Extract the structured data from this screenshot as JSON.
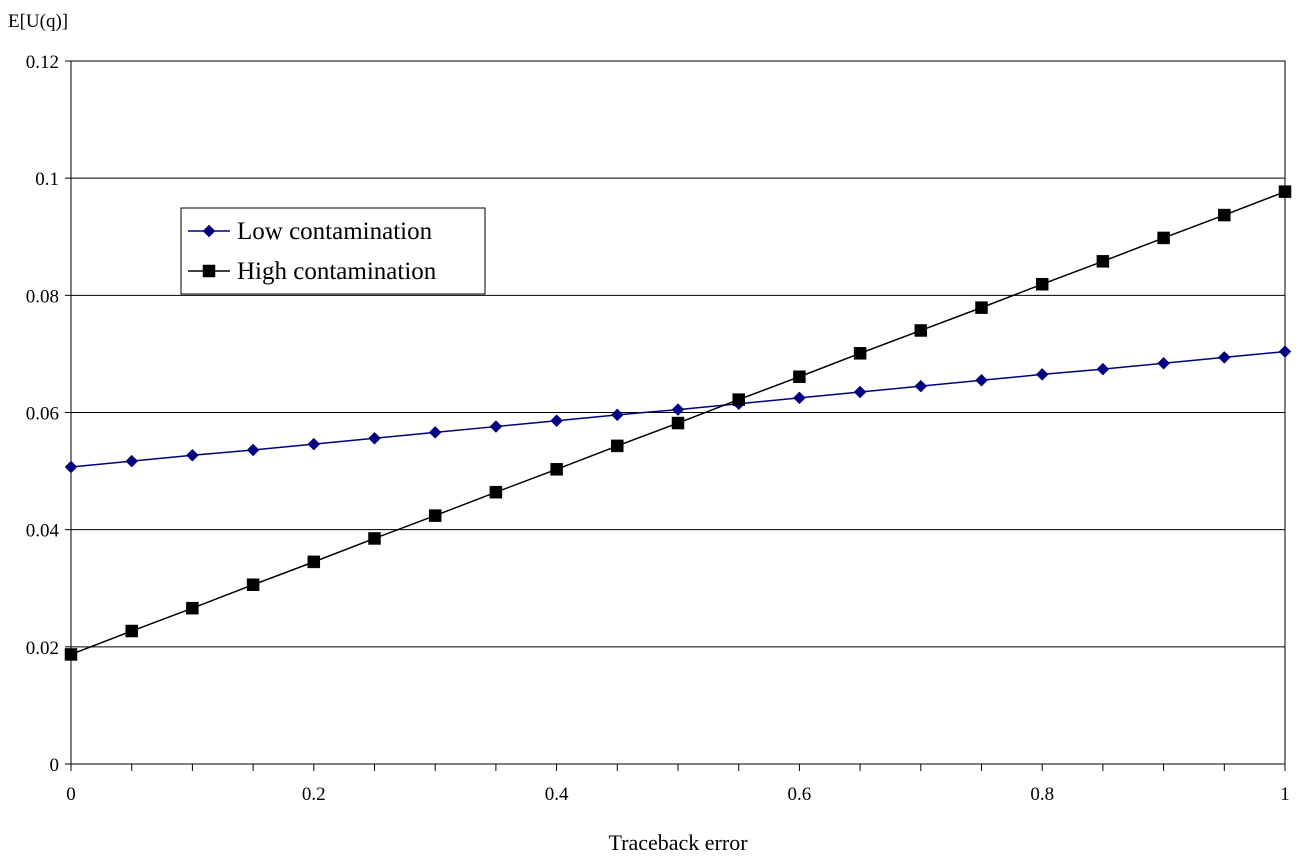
{
  "chart_data": {
    "type": "line",
    "title": "",
    "xlabel": "Traceback error",
    "ylabel": "E[U(q)]",
    "xlim": [
      0,
      1
    ],
    "ylim": [
      0,
      0.12
    ],
    "x_ticks": [
      0,
      0.2,
      0.4,
      0.6,
      0.8,
      1
    ],
    "x_tick_labels": [
      "0",
      "0.2",
      "0.4",
      "0.6",
      "0.8",
      "1"
    ],
    "x_minor_step": 0.05,
    "y_ticks": [
      0,
      0.02,
      0.04,
      0.06,
      0.08,
      0.1,
      0.12
    ],
    "y_tick_labels": [
      "0",
      "0.02",
      "0.04",
      "0.06",
      "0.08",
      "0.1",
      "0.12"
    ],
    "grid": "horizontal",
    "legend_position": "upper-left",
    "x": [
      0,
      0.05,
      0.1,
      0.15,
      0.2,
      0.25,
      0.3,
      0.35,
      0.4,
      0.45,
      0.5,
      0.55,
      0.6,
      0.65,
      0.7,
      0.75,
      0.8,
      0.85,
      0.9,
      0.95,
      1
    ],
    "series": [
      {
        "name": "Low contamination",
        "color": "#000080",
        "marker": "diamond",
        "values": [
          0.0507,
          0.0517,
          0.0527,
          0.0536,
          0.0546,
          0.0556,
          0.0566,
          0.0576,
          0.0586,
          0.0596,
          0.0605,
          0.0615,
          0.0625,
          0.0635,
          0.0645,
          0.0655,
          0.0665,
          0.0674,
          0.0684,
          0.0694,
          0.0704
        ]
      },
      {
        "name": "High contamination",
        "color": "#000000",
        "marker": "square",
        "values": [
          0.0187,
          0.0227,
          0.0266,
          0.0306,
          0.0345,
          0.0385,
          0.0424,
          0.0464,
          0.0503,
          0.0543,
          0.0582,
          0.0622,
          0.0661,
          0.0701,
          0.074,
          0.0779,
          0.0819,
          0.0858,
          0.0898,
          0.0937,
          0.0977
        ]
      }
    ]
  }
}
